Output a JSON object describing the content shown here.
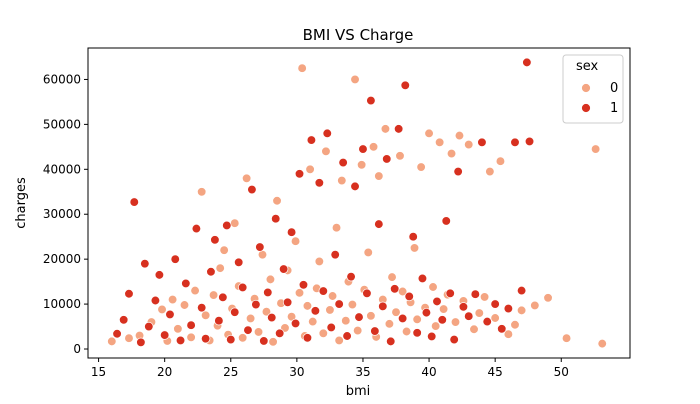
{
  "chart_data": {
    "type": "scatter",
    "title": "BMI VS Charge",
    "xlabel": "bmi",
    "ylabel": "charges",
    "xlim": [
      14.2,
      55.2
    ],
    "ylim": [
      -2000,
      67000
    ],
    "xticks": [
      15,
      20,
      25,
      30,
      35,
      40,
      45,
      50
    ],
    "yticks": [
      0,
      10000,
      20000,
      30000,
      40000,
      50000,
      60000
    ],
    "xtick_labels": [
      "15",
      "20",
      "25",
      "30",
      "35",
      "40",
      "45",
      "50"
    ],
    "ytick_labels": [
      "0",
      "10000",
      "20000",
      "30000",
      "40000",
      "50000",
      "60000"
    ],
    "grid": false,
    "legend": {
      "title": "sex",
      "placement": "top-right",
      "entries": [
        {
          "label": "0",
          "color": "#f4a582"
        },
        {
          "label": "1",
          "color": "#d7301f"
        }
      ]
    },
    "series": [
      {
        "name": "0",
        "color": "#f4a582",
        "points": [
          [
            16.0,
            1700
          ],
          [
            17.3,
            2400
          ],
          [
            18.1,
            3000
          ],
          [
            19.0,
            6000
          ],
          [
            19.8,
            8800
          ],
          [
            20.2,
            1800
          ],
          [
            20.6,
            11000
          ],
          [
            21.0,
            4500
          ],
          [
            21.5,
            9800
          ],
          [
            22.0,
            2600
          ],
          [
            22.3,
            13000
          ],
          [
            22.8,
            35000
          ],
          [
            23.1,
            7500
          ],
          [
            23.4,
            1900
          ],
          [
            23.7,
            12000
          ],
          [
            24.0,
            5200
          ],
          [
            24.2,
            18000
          ],
          [
            24.5,
            22000
          ],
          [
            24.8,
            3200
          ],
          [
            25.1,
            9000
          ],
          [
            25.3,
            28000
          ],
          [
            25.6,
            14000
          ],
          [
            25.9,
            2500
          ],
          [
            26.2,
            38000
          ],
          [
            26.5,
            6800
          ],
          [
            26.8,
            11200
          ],
          [
            27.1,
            3800
          ],
          [
            27.4,
            21000
          ],
          [
            27.7,
            8300
          ],
          [
            28.0,
            15500
          ],
          [
            28.2,
            1600
          ],
          [
            28.5,
            33000
          ],
          [
            28.8,
            10200
          ],
          [
            29.1,
            4700
          ],
          [
            29.3,
            17500
          ],
          [
            29.6,
            7200
          ],
          [
            29.9,
            24000
          ],
          [
            30.2,
            12500
          ],
          [
            30.4,
            62500
          ],
          [
            30.6,
            2900
          ],
          [
            30.8,
            9600
          ],
          [
            31.0,
            40000
          ],
          [
            31.2,
            6100
          ],
          [
            31.5,
            13500
          ],
          [
            31.7,
            19500
          ],
          [
            32.0,
            3500
          ],
          [
            32.2,
            44000
          ],
          [
            32.5,
            8700
          ],
          [
            32.7,
            11800
          ],
          [
            33.0,
            27000
          ],
          [
            33.2,
            1900
          ],
          [
            33.4,
            37500
          ],
          [
            33.7,
            6300
          ],
          [
            33.9,
            15000
          ],
          [
            34.2,
            9900
          ],
          [
            34.4,
            60000
          ],
          [
            34.6,
            4100
          ],
          [
            34.9,
            41000
          ],
          [
            35.1,
            13200
          ],
          [
            35.4,
            21500
          ],
          [
            35.6,
            7400
          ],
          [
            35.8,
            45000
          ],
          [
            36.0,
            2700
          ],
          [
            36.2,
            38500
          ],
          [
            36.5,
            11000
          ],
          [
            36.7,
            49000
          ],
          [
            37.0,
            5600
          ],
          [
            37.2,
            16000
          ],
          [
            37.5,
            8200
          ],
          [
            37.8,
            43000
          ],
          [
            38.0,
            12800
          ],
          [
            38.3,
            3900
          ],
          [
            38.6,
            10400
          ],
          [
            38.9,
            22500
          ],
          [
            39.1,
            6600
          ],
          [
            39.4,
            40500
          ],
          [
            39.7,
            9200
          ],
          [
            40.0,
            48000
          ],
          [
            40.3,
            13800
          ],
          [
            40.5,
            5100
          ],
          [
            40.8,
            46000
          ],
          [
            41.1,
            8900
          ],
          [
            41.4,
            12100
          ],
          [
            41.7,
            43500
          ],
          [
            42.0,
            6000
          ],
          [
            42.3,
            47500
          ],
          [
            42.6,
            10700
          ],
          [
            43.0,
            45500
          ],
          [
            43.4,
            4400
          ],
          [
            43.8,
            8000
          ],
          [
            44.2,
            11600
          ],
          [
            44.6,
            39500
          ],
          [
            45.0,
            6900
          ],
          [
            45.4,
            41800
          ],
          [
            46.0,
            3300
          ],
          [
            46.5,
            5400
          ],
          [
            47.0,
            8600
          ],
          [
            48.0,
            9700
          ],
          [
            49.0,
            11400
          ],
          [
            50.4,
            2400
          ],
          [
            52.6,
            44500
          ],
          [
            53.1,
            1200
          ]
        ]
      },
      {
        "name": "1",
        "color": "#d7301f",
        "points": [
          [
            16.4,
            3400
          ],
          [
            16.9,
            6500
          ],
          [
            17.3,
            12300
          ],
          [
            17.7,
            32700
          ],
          [
            18.2,
            1500
          ],
          [
            18.5,
            19000
          ],
          [
            18.8,
            5000
          ],
          [
            19.3,
            10800
          ],
          [
            19.6,
            16500
          ],
          [
            20.0,
            3100
          ],
          [
            20.4,
            7700
          ],
          [
            20.8,
            20000
          ],
          [
            21.2,
            1900
          ],
          [
            21.6,
            14600
          ],
          [
            22.0,
            5300
          ],
          [
            22.4,
            26800
          ],
          [
            22.8,
            9200
          ],
          [
            23.1,
            2300
          ],
          [
            23.5,
            17200
          ],
          [
            23.8,
            24300
          ],
          [
            24.1,
            6300
          ],
          [
            24.4,
            11500
          ],
          [
            24.7,
            27500
          ],
          [
            25.0,
            2100
          ],
          [
            25.3,
            8200
          ],
          [
            25.6,
            19300
          ],
          [
            25.9,
            13700
          ],
          [
            26.3,
            4200
          ],
          [
            26.6,
            35500
          ],
          [
            26.9,
            9900
          ],
          [
            27.2,
            22700
          ],
          [
            27.5,
            1800
          ],
          [
            27.8,
            12600
          ],
          [
            28.1,
            7000
          ],
          [
            28.4,
            29000
          ],
          [
            28.7,
            3500
          ],
          [
            29.0,
            17800
          ],
          [
            29.3,
            10400
          ],
          [
            29.6,
            26000
          ],
          [
            29.9,
            5700
          ],
          [
            30.2,
            39000
          ],
          [
            30.5,
            14300
          ],
          [
            30.8,
            2500
          ],
          [
            31.1,
            46500
          ],
          [
            31.4,
            8500
          ],
          [
            31.7,
            37000
          ],
          [
            32.0,
            12900
          ],
          [
            32.3,
            48000
          ],
          [
            32.6,
            4800
          ],
          [
            32.9,
            21000
          ],
          [
            33.2,
            10000
          ],
          [
            33.5,
            41500
          ],
          [
            33.8,
            2900
          ],
          [
            34.1,
            16100
          ],
          [
            34.4,
            36200
          ],
          [
            34.7,
            7100
          ],
          [
            35.0,
            44500
          ],
          [
            35.3,
            12400
          ],
          [
            35.6,
            55300
          ],
          [
            35.9,
            4000
          ],
          [
            36.2,
            27800
          ],
          [
            36.5,
            9500
          ],
          [
            36.8,
            42300
          ],
          [
            37.1,
            1700
          ],
          [
            37.4,
            13400
          ],
          [
            37.7,
            49000
          ],
          [
            38.0,
            6800
          ],
          [
            38.2,
            58700
          ],
          [
            38.5,
            11700
          ],
          [
            38.8,
            25000
          ],
          [
            39.1,
            3600
          ],
          [
            39.5,
            15700
          ],
          [
            39.8,
            8100
          ],
          [
            40.2,
            2800
          ],
          [
            40.6,
            10600
          ],
          [
            41.0,
            6500
          ],
          [
            41.3,
            28500
          ],
          [
            41.6,
            12400
          ],
          [
            41.9,
            2100
          ],
          [
            42.2,
            39500
          ],
          [
            42.6,
            9400
          ],
          [
            43.0,
            7300
          ],
          [
            43.5,
            12200
          ],
          [
            44.0,
            46000
          ],
          [
            44.4,
            6100
          ],
          [
            45.0,
            10000
          ],
          [
            45.5,
            4500
          ],
          [
            46.0,
            9000
          ],
          [
            46.5,
            46000
          ],
          [
            47.0,
            13000
          ],
          [
            47.4,
            63800
          ],
          [
            47.6,
            46200
          ]
        ]
      }
    ]
  }
}
